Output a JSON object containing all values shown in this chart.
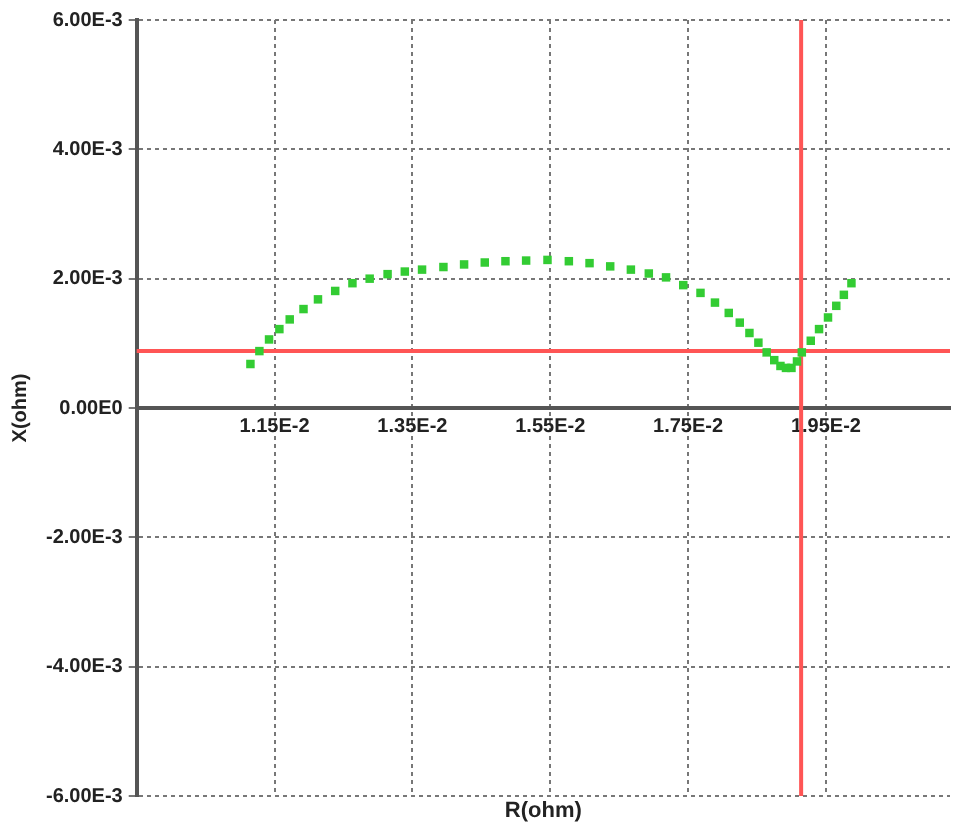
{
  "chart_data": {
    "type": "scatter",
    "xlabel": "R(ohm)",
    "ylabel": "X(ohm)",
    "x": [
      0.01115,
      0.01128,
      0.01142,
      0.01157,
      0.01172,
      0.01192,
      0.01213,
      0.01238,
      0.01263,
      0.01288,
      0.01314,
      0.01339,
      0.01364,
      0.01395,
      0.01425,
      0.01455,
      0.01485,
      0.01515,
      0.01546,
      0.01577,
      0.01607,
      0.01637,
      0.01667,
      0.01693,
      0.01718,
      0.01743,
      0.01768,
      0.01789,
      0.01809,
      0.01825,
      0.01839,
      0.01852,
      0.01864,
      0.01875,
      0.01884,
      0.01892,
      0.019,
      0.01908,
      0.01915,
      0.01928,
      0.0194,
      0.01953,
      0.01965,
      0.01976,
      0.01987
    ],
    "series": [
      {
        "color": "#33cc33",
        "values": [
          0.00068,
          0.00088,
          0.00106,
          0.00122,
          0.00137,
          0.00153,
          0.00168,
          0.00181,
          0.00193,
          0.002,
          0.00207,
          0.00211,
          0.00214,
          0.00218,
          0.00222,
          0.00225,
          0.00227,
          0.00228,
          0.00229,
          0.00227,
          0.00224,
          0.00219,
          0.00214,
          0.00208,
          0.00202,
          0.0019,
          0.00178,
          0.00163,
          0.00147,
          0.00132,
          0.00116,
          0.00101,
          0.00086,
          0.00074,
          0.00065,
          0.00062,
          0.00062,
          0.00072,
          0.00086,
          0.00104,
          0.00122,
          0.0014,
          0.00158,
          0.00175,
          0.00193
        ]
      }
    ],
    "xlim": [
      0.0095,
      0.0213
    ],
    "xticks": [
      {
        "value": 0.0115,
        "label": "1.15E-2"
      },
      {
        "value": 0.0135,
        "label": "1.35E-2"
      },
      {
        "value": 0.0155,
        "label": "1.55E-2"
      },
      {
        "value": 0.0175,
        "label": "1.75E-2"
      },
      {
        "value": 0.0195,
        "label": "1.95E-2"
      }
    ],
    "ylim": [
      -0.006,
      0.006
    ],
    "yticks": [
      {
        "value": -0.006,
        "label": "-6.00E-3"
      },
      {
        "value": -0.004,
        "label": "-4.00E-3"
      },
      {
        "value": -0.002,
        "label": "-2.00E-3"
      },
      {
        "value": 0,
        "label": "0.00E0"
      },
      {
        "value": 0.002,
        "label": "2.00E-3"
      },
      {
        "value": 0.004,
        "label": "4.00E-3"
      },
      {
        "value": 0.006,
        "label": "6.00E-3"
      }
    ],
    "ref_lines": [
      {
        "axis": "y",
        "value": 0.00088,
        "color": "#ff5555"
      },
      {
        "axis": "x",
        "value": 0.01914,
        "color": "#ff5555"
      }
    ],
    "grid": true,
    "marker": "square"
  }
}
